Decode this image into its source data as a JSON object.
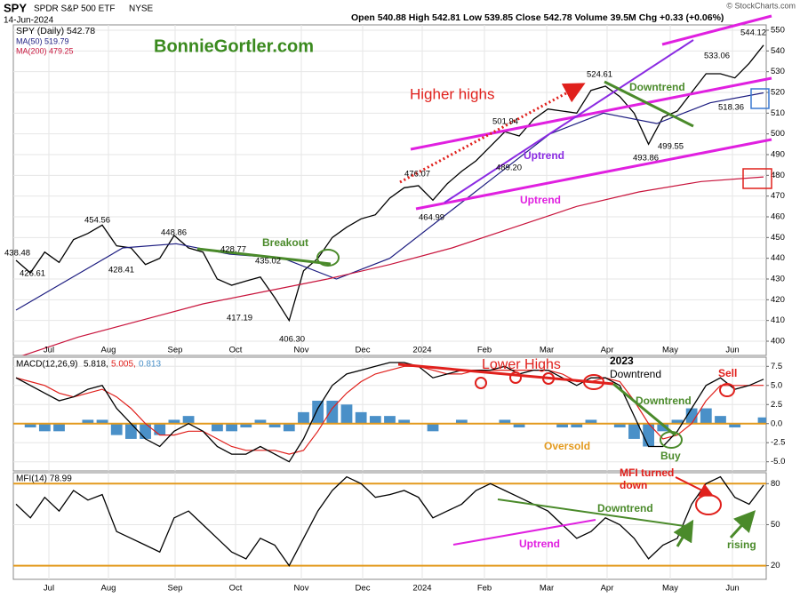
{
  "header": {
    "symbol": "SPY",
    "name": "SPDR S&P 500 ETF",
    "exchange": "NYSE",
    "date": "14-Jun-2024",
    "quote": "Open 540.88  High 542.81  Low 539.85  Close 542.78  Volume 39.5M  Chg +0.33 (+0.06%)",
    "credit": "© StockCharts.com",
    "watermark": "BonnieGortler.com"
  },
  "chart_data": [
    {
      "type": "line",
      "legend": [
        "SPY (Daily) 542.78",
        "MA(50) 519.79",
        "MA(200) 479.25"
      ],
      "xtick_labels": [
        "Jul",
        "Aug",
        "Sep",
        "Oct",
        "Nov",
        "Dec",
        "2024",
        "Feb",
        "Mar",
        "Apr",
        "May",
        "Jun"
      ],
      "series": [
        {
          "name": "SPY",
          "color": "#000000",
          "values": [
            439,
            433,
            443,
            438,
            449,
            452,
            456,
            446,
            445,
            437,
            440,
            451,
            445,
            443,
            430,
            427,
            429,
            431,
            421,
            410,
            434,
            440,
            450,
            455,
            459,
            461,
            469,
            474,
            475,
            468,
            476,
            482,
            487,
            494,
            501,
            499,
            507,
            512,
            511,
            510,
            521,
            523,
            518,
            510,
            495,
            508,
            511,
            520,
            529,
            529,
            527,
            534,
            542.78
          ]
        },
        {
          "name": "MA(50)",
          "color": "#1c1c80",
          "values": [
            415,
            430,
            445,
            447,
            442,
            440,
            430,
            440,
            460,
            480,
            500,
            510,
            505,
            515,
            519.79
          ]
        },
        {
          "name": "MA(200)",
          "color": "#c8143c",
          "values": [
            392,
            402,
            410,
            418,
            424,
            430,
            437,
            445,
            455,
            465,
            472,
            477,
            479.25
          ]
        }
      ],
      "ylim": [
        400,
        550
      ],
      "yticks": [
        400,
        410,
        420,
        430,
        440,
        450,
        460,
        470,
        480,
        490,
        500,
        510,
        520,
        530,
        540,
        550
      ],
      "price_labels": [
        "438.48",
        "426.61",
        "454.56",
        "428.41",
        "448.86",
        "428.77",
        "435.02",
        "417.19",
        "406.30",
        "476.07",
        "464.99",
        "501.94",
        "489.20",
        "524.61",
        "493.86",
        "499.55",
        "533.06",
        "518.36",
        "544.12"
      ],
      "annotations": [
        "Higher highs",
        "Uptrend",
        "Uptrend",
        "Downtrend",
        "Breakout"
      ]
    },
    {
      "type": "macd",
      "legend": [
        "MACD(12,26,9)",
        "5.818,",
        "5.005,",
        "0.813"
      ],
      "series": [
        {
          "name": "MACD",
          "color": "#000000",
          "values": [
            6,
            5,
            4,
            3,
            3.5,
            4.5,
            5,
            2,
            0,
            -2,
            -3,
            -1,
            0,
            -1,
            -3,
            -4,
            -4,
            -3,
            -4,
            -5,
            -2,
            2,
            5,
            6.5,
            7,
            7.5,
            8,
            8,
            7.5,
            6,
            6.5,
            7,
            7,
            7,
            7.5,
            6.5,
            7,
            7,
            6,
            5,
            6,
            6,
            5,
            1,
            -3,
            -3,
            -1,
            2,
            5,
            6,
            4.5,
            5,
            5.818
          ]
        },
        {
          "name": "Signal",
          "color": "#e0201c",
          "values": [
            6,
            5.5,
            5,
            4,
            3.5,
            4,
            4.5,
            3.5,
            2,
            0,
            -1.5,
            -1.5,
            -1,
            -1,
            -2,
            -3,
            -3.5,
            -3.5,
            -3.5,
            -4,
            -3.5,
            -1,
            2,
            4,
            5.5,
            6.5,
            7,
            7.5,
            7.5,
            7,
            6.5,
            6.5,
            7,
            7,
            7,
            7,
            7,
            7,
            6.5,
            5.5,
            5.5,
            6,
            5.5,
            3,
            0,
            -2,
            -1.5,
            0,
            3,
            5,
            5,
            5,
            5.005
          ]
        },
        {
          "name": "Histogram",
          "color": "#4a90c8",
          "values": [
            0,
            -0.5,
            -1,
            -1,
            0,
            0.5,
            0.5,
            -1.5,
            -2,
            -2,
            -1.5,
            0.5,
            1,
            0,
            -1,
            -1,
            -0.5,
            0.5,
            -0.5,
            -1,
            1.5,
            3,
            3,
            2.5,
            1.5,
            1,
            1,
            0.5,
            0,
            -1,
            0,
            0.5,
            0,
            0,
            0.5,
            -0.5,
            0,
            0,
            -0.5,
            -0.5,
            0.5,
            0,
            -0.5,
            -2,
            -3,
            -1,
            0.5,
            2,
            2,
            1,
            -0.5,
            0,
            0.813
          ]
        }
      ],
      "ylim": [
        -6.2,
        8.7
      ],
      "yticks": [
        {
          "value": -5,
          "label": "-5.0"
        },
        -2.5,
        {
          "value": 0,
          "label": "0.0"
        },
        2.5,
        {
          "value": 5,
          "label": "5.0"
        },
        7.5
      ],
      "zero_line_color": "#e39a1e",
      "annotations": [
        "Lower Highs",
        "2023",
        "Downtrend",
        "Downtrend",
        "Sell",
        "Oversold",
        "Buy"
      ]
    },
    {
      "type": "line",
      "legend": [
        "MFI(14) 78.99"
      ],
      "series": [
        {
          "name": "MFI",
          "color": "#000000",
          "values": [
            65,
            55,
            70,
            60,
            75,
            68,
            72,
            45,
            40,
            35,
            30,
            55,
            60,
            50,
            40,
            30,
            25,
            40,
            35,
            20,
            40,
            60,
            75,
            85,
            80,
            70,
            72,
            75,
            70,
            55,
            60,
            65,
            75,
            80,
            75,
            70,
            65,
            60,
            50,
            40,
            45,
            55,
            50,
            40,
            25,
            35,
            40,
            65,
            80,
            85,
            70,
            65,
            78.99
          ]
        }
      ],
      "ylim": [
        10,
        88
      ],
      "yticks": [
        20,
        50,
        80
      ],
      "level_lines": [
        20,
        80
      ],
      "level_color": "#e39a1e",
      "annotations": [
        "MFI turned",
        "down",
        "Downtrend",
        "Uptrend",
        "rising"
      ]
    }
  ]
}
